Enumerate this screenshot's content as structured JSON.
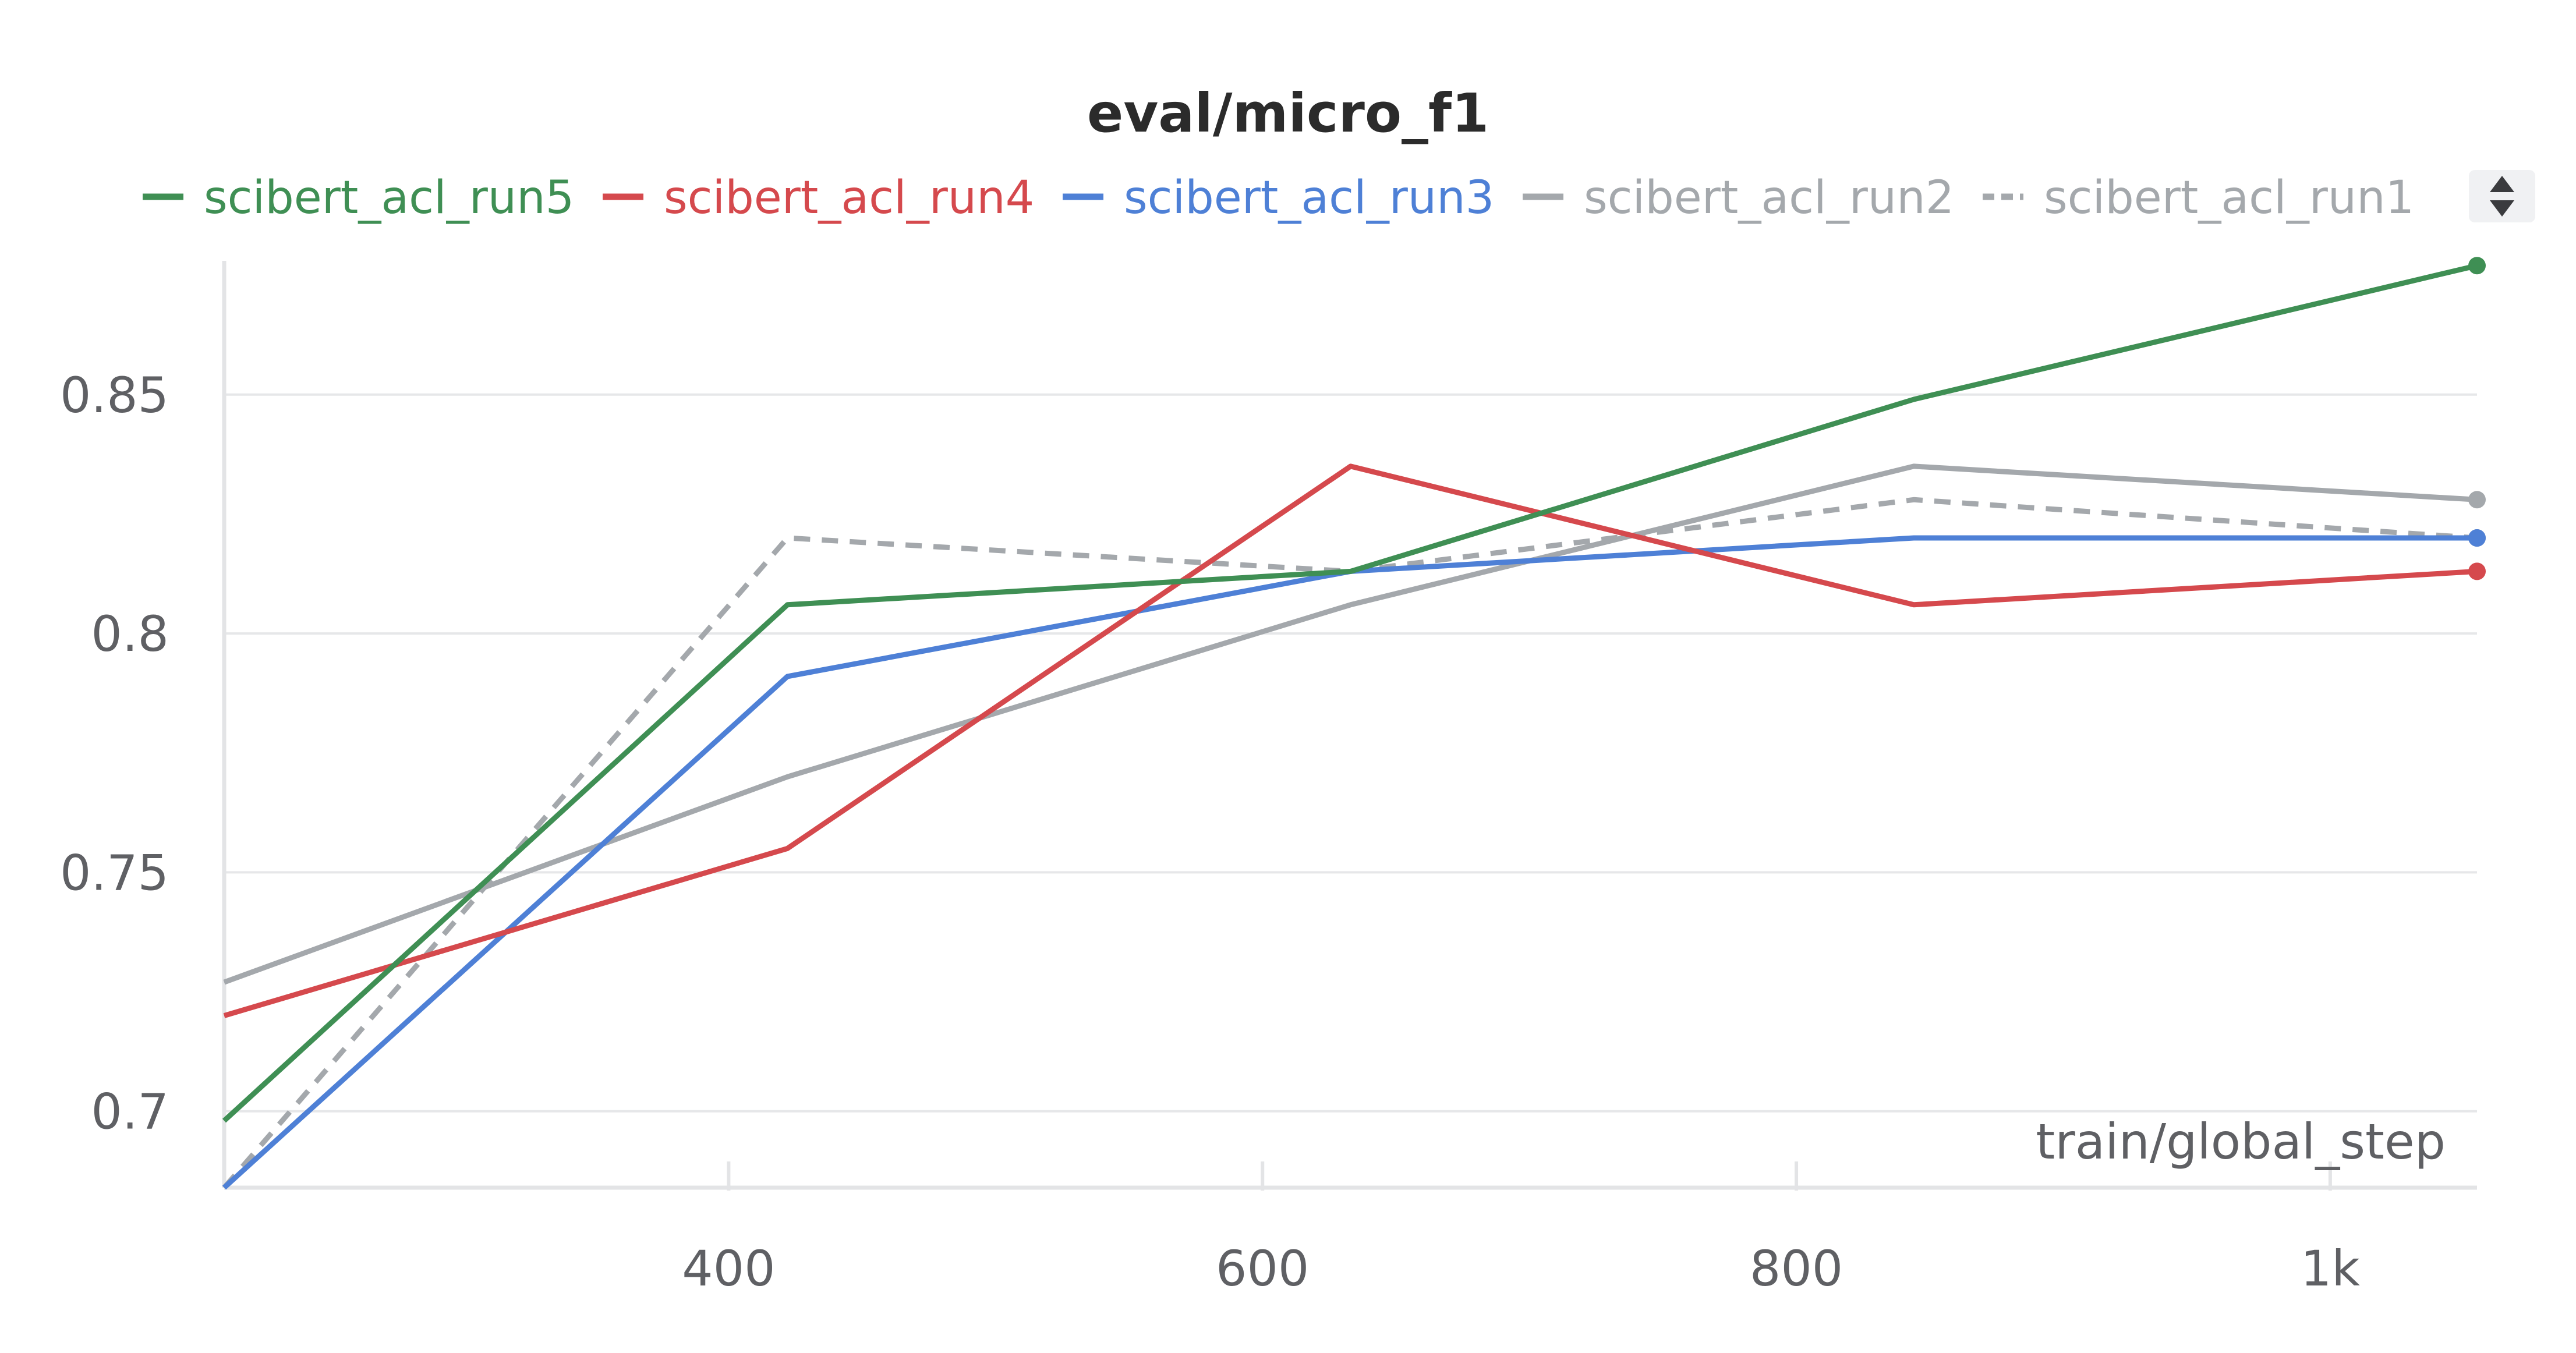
{
  "chart_data": {
    "type": "line",
    "title": "eval/micro_f1",
    "xlabel": "train/global_step",
    "ylabel": "",
    "x_ticks": [
      {
        "value": 400,
        "label": "400"
      },
      {
        "value": 600,
        "label": "600"
      },
      {
        "value": 800,
        "label": "800"
      },
      {
        "value": 1000,
        "label": "1k"
      }
    ],
    "y_ticks": [
      {
        "value": 0.7,
        "label": "0.7"
      },
      {
        "value": 0.75,
        "label": "0.75"
      },
      {
        "value": 0.8,
        "label": "0.8"
      },
      {
        "value": 0.85,
        "label": "0.85"
      }
    ],
    "xlim": [
      211,
      1055
    ],
    "ylim": [
      0.684,
      0.878
    ],
    "grid": "horizontal",
    "legend_position": "top",
    "x": [
      211,
      422,
      633,
      844,
      1055
    ],
    "series": [
      {
        "name": "scibert_acl_run5",
        "color": "#3f8f54",
        "dashed": false,
        "values": [
          0.698,
          0.806,
          0.813,
          0.849,
          0.877
        ]
      },
      {
        "name": "scibert_acl_run4",
        "color": "#d5494d",
        "dashed": false,
        "values": [
          0.72,
          0.755,
          0.835,
          0.806,
          0.813
        ]
      },
      {
        "name": "scibert_acl_run3",
        "color": "#4e80d6",
        "dashed": false,
        "values": [
          0.684,
          0.791,
          0.813,
          0.82,
          0.82
        ]
      },
      {
        "name": "scibert_acl_run2",
        "color": "#a4a8ac",
        "dashed": false,
        "values": [
          0.727,
          0.77,
          0.806,
          0.835,
          0.828
        ]
      },
      {
        "name": "scibert_acl_run1",
        "color": "#a4a8ac",
        "dashed": true,
        "values": [
          0.684,
          0.82,
          0.813,
          0.828,
          0.82
        ]
      }
    ]
  },
  "legend": {
    "scroll_icon": "up-down-arrows-icon"
  }
}
